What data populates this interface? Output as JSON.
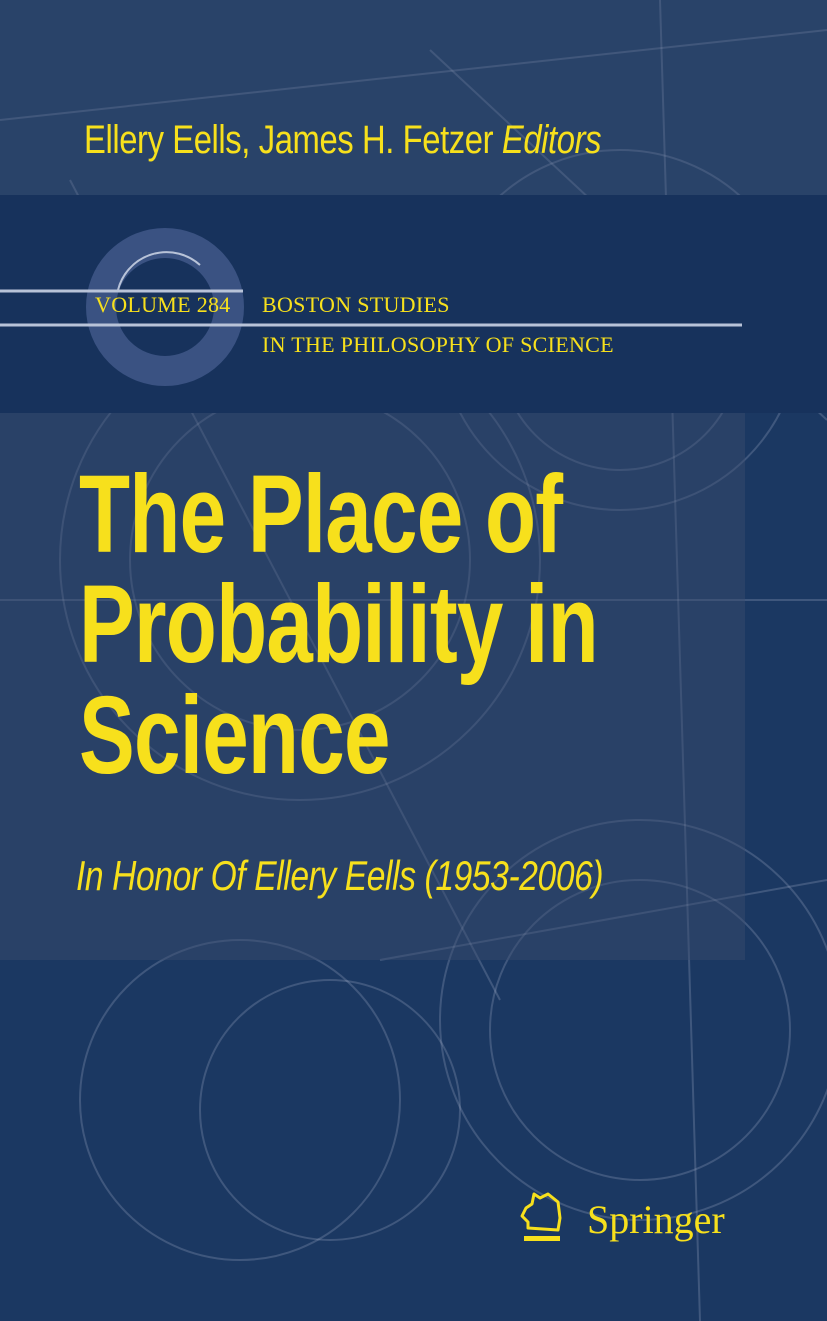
{
  "cover": {
    "authors": "Ellery Eells, James H. Fetzer",
    "editors_label": "Editors",
    "series_volume": "VOLUME 284",
    "series_line1": "BOSTON STUDIES",
    "series_line2": "IN THE PHILOSOPHY OF SCIENCE",
    "title_lines": [
      "The Place of",
      "Probability in",
      "Science"
    ],
    "subtitle": "In Honor Of Ellery Eells (1953-2006)",
    "publisher": "Springer",
    "publisher_logo_icon": "knight-chess-horse-icon"
  },
  "colors": {
    "background": "#1b3862",
    "text_accent": "#f7e01c",
    "ring": "#3a5282",
    "rule": "#b8c3d8"
  }
}
